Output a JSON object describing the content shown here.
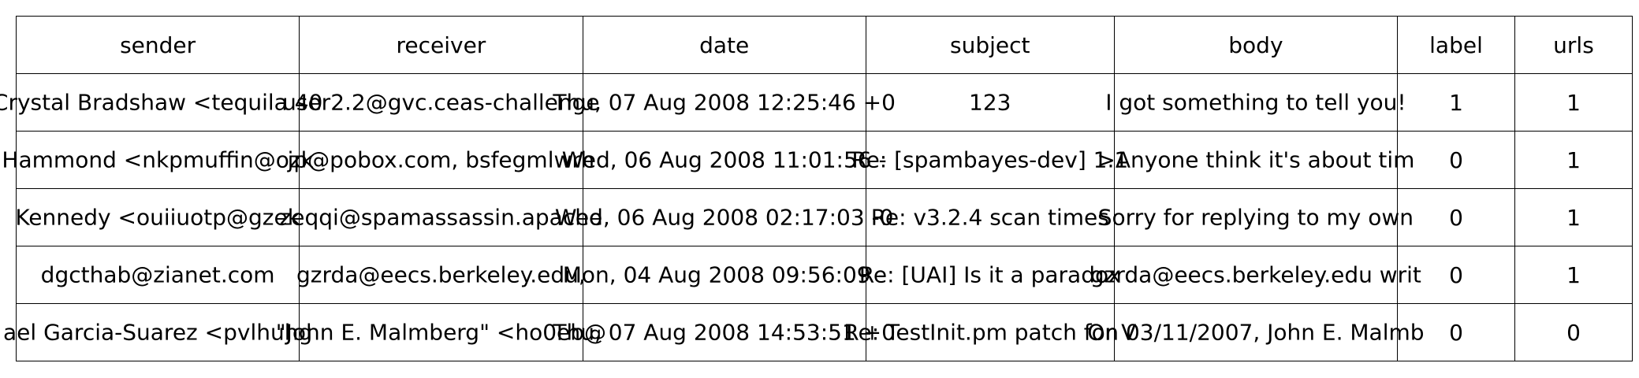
{
  "table": {
    "columns": [
      "sender",
      "receiver",
      "date",
      "subject",
      "body",
      "label",
      "urls"
    ],
    "rows": [
      [
        "Crystal Bradshaw <tequila 40",
        "user2.2@gvc.ceas-challenge",
        "Thu, 07 Aug 2008 12:25:46 +0",
        "123",
        "I got something to tell you!",
        "1",
        "1"
      ],
      [
        "Hammond <nkpmuffin@ozk",
        "jp@pobox.com, bsfegmlwrh",
        "Wed, 06 Aug 2008 11:01:56 -",
        "Re: [spambayes-dev] 1.1",
        ">Anyone think it's about tim",
        "0",
        "1"
      ],
      [
        "Kennedy <ouiiuotp@gzek",
        "zeqqi@spamassassin.apache",
        "Wed, 06 Aug 2008 02:17:03 -0",
        "Re: v3.2.4 scan times",
        "Sorry for replying to my own",
        "0",
        "1"
      ],
      [
        "dgcthab@zianet.com",
        "gzrda@eecs.berkeley.edu,",
        "Mon, 04 Aug 2008 09:56:09 -",
        "Re: [UAI] Is it a paradox",
        "gzrda@eecs.berkeley.edu writ",
        "0",
        "1"
      ],
      [
        "ael Garcia-Suarez <pvlhuhg",
        "\"John E. Malmberg\" <ho0eb@",
        "Thu, 07 Aug 2008 14:53:51 +0",
        "Re: TestInit.pm patch for V",
        "On 03/11/2007, John E. Malmb",
        "0",
        "0"
      ]
    ]
  }
}
